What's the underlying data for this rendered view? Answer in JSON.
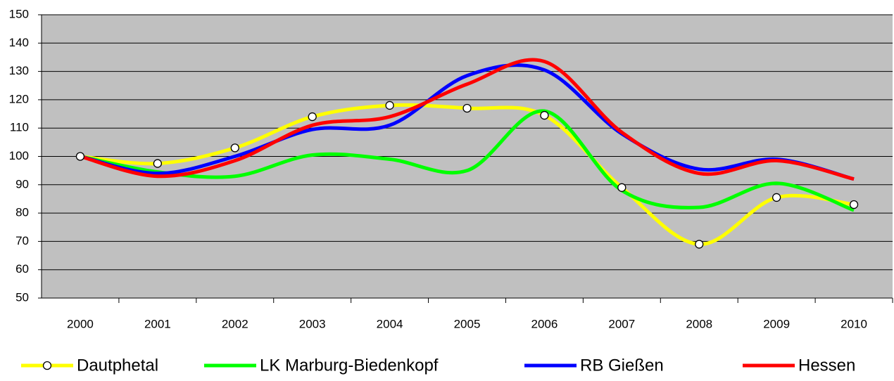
{
  "chart_data": {
    "type": "line",
    "categories": [
      "2000",
      "2001",
      "2002",
      "2003",
      "2004",
      "2005",
      "2006",
      "2007",
      "2008",
      "2009",
      "2010"
    ],
    "series": [
      {
        "name": "Dautphetal",
        "color": "#ffff00",
        "markers": true,
        "values": [
          100,
          97.5,
          103,
          114,
          118,
          117,
          114.5,
          89,
          69,
          85.5,
          83
        ]
      },
      {
        "name": "LK Marburg-Biedenkopf",
        "color": "#00ff00",
        "markers": false,
        "values": [
          100,
          94.5,
          93,
          100.5,
          99,
          95,
          116,
          88,
          82,
          90.5,
          81
        ]
      },
      {
        "name": "RB Gießen",
        "color": "#0000ff",
        "markers": false,
        "values": [
          100,
          94,
          100,
          109.5,
          111,
          128.5,
          130.5,
          108,
          95.5,
          99,
          92
        ]
      },
      {
        "name": "Hessen",
        "color": "#ff0000",
        "markers": false,
        "values": [
          100,
          93,
          98.5,
          111,
          114,
          125.5,
          133.5,
          108.5,
          94,
          98.5,
          92
        ]
      }
    ],
    "ylim": [
      50,
      150
    ],
    "yticks": [
      50,
      60,
      70,
      80,
      90,
      100,
      110,
      120,
      130,
      140,
      150
    ],
    "grid": true,
    "legend": "bottom",
    "plot_background": "#c0c0c0"
  }
}
